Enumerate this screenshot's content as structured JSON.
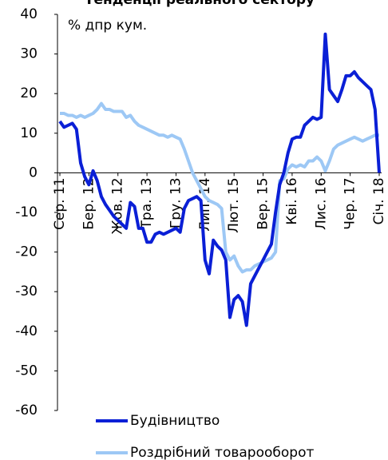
{
  "chart_data": {
    "type": "line",
    "title": "Тенденції реального сектору",
    "annotation": "% дпр кум.",
    "categories": [
      "Сер. 11",
      null,
      null,
      null,
      null,
      null,
      null,
      "Бер. 12",
      null,
      null,
      null,
      null,
      null,
      null,
      "Жов. 12",
      null,
      null,
      null,
      null,
      null,
      null,
      "Тра. 13",
      null,
      null,
      null,
      null,
      null,
      null,
      "Гру. 13",
      null,
      null,
      null,
      null,
      null,
      null,
      "Лип. 14",
      null,
      null,
      null,
      null,
      null,
      null,
      "Лют. 15",
      null,
      null,
      null,
      null,
      null,
      null,
      "Вер. 15",
      null,
      null,
      null,
      null,
      null,
      null,
      "Кві. 16",
      null,
      null,
      null,
      null,
      null,
      null,
      "Лис. 16",
      null,
      null,
      null,
      null,
      null,
      null,
      "Чер. 17",
      null,
      null,
      null,
      null,
      null,
      null,
      "Січ. 18"
    ],
    "series": [
      {
        "name": "Будівництво",
        "color": "#0a1fd6",
        "values": [
          13,
          11.5,
          12,
          12.5,
          11,
          2.5,
          -1,
          -3,
          0.5,
          -2,
          -6,
          -8,
          -9.5,
          -11,
          -12,
          -13,
          -14,
          -7.5,
          -8.5,
          -14,
          -14,
          -17.5,
          -17.5,
          -15.5,
          -15,
          -15.5,
          -15,
          -14.5,
          -14,
          -15,
          -9,
          -7,
          -6.5,
          -6,
          -7,
          -22,
          -25.5,
          -17,
          -18.5,
          -19.5,
          -22,
          -36.5,
          -32,
          -31,
          -32.5,
          -38.5,
          -28,
          -26,
          -24,
          -22,
          -20,
          -18,
          -10,
          -3,
          0,
          5,
          8.5,
          9,
          9,
          12,
          13,
          14,
          13.5,
          14,
          35,
          21,
          19.5,
          18,
          21,
          24.5,
          24.5,
          25.5,
          24,
          23,
          22,
          21,
          16,
          0
        ]
      },
      {
        "name": "Роздрібний товарооборот",
        "color": "#9dc8f5",
        "values": [
          15,
          15,
          14.5,
          14.5,
          14,
          14.5,
          14,
          14.5,
          15,
          16,
          17.5,
          16,
          16,
          15.5,
          15.5,
          15.5,
          14,
          14.5,
          13,
          12,
          11.5,
          11,
          10.5,
          10,
          9.5,
          9.5,
          9,
          9.5,
          9,
          8.5,
          6,
          3,
          0,
          -2,
          -4,
          -6,
          -7,
          -7.5,
          -8,
          -9,
          -20,
          -22,
          -21,
          -23.5,
          -25,
          -24.5,
          -24.5,
          -23.5,
          -23,
          -22.5,
          -22,
          -21.5,
          -20,
          -2,
          -1.5,
          1,
          2,
          1.5,
          2,
          1.5,
          3,
          3,
          4,
          3,
          0.5,
          3,
          6,
          7,
          7.5,
          8,
          8.5,
          9,
          8.5,
          8,
          8.5,
          9,
          9.5,
          9.5
        ]
      }
    ],
    "ylim": [
      -60,
      40
    ],
    "yticks": [
      -60,
      -50,
      -40,
      -30,
      -20,
      -10,
      0,
      10,
      20,
      30,
      40
    ]
  }
}
